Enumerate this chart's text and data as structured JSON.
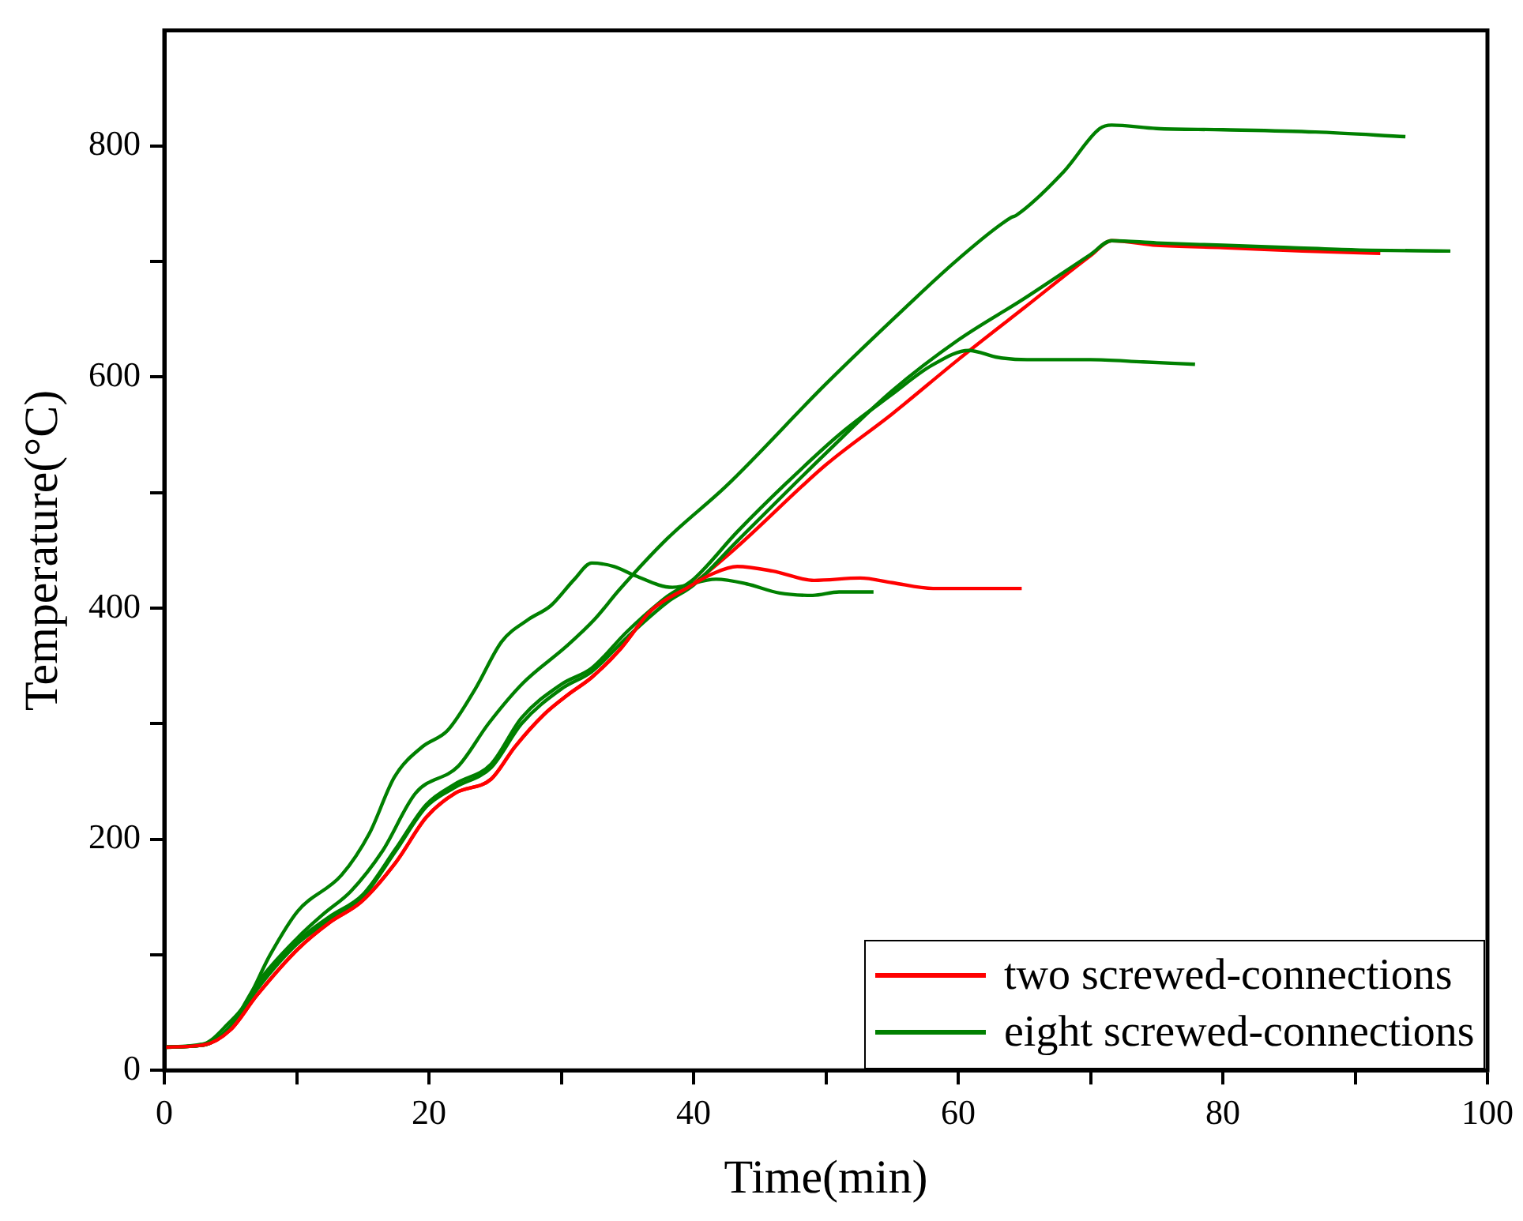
{
  "chart_data": {
    "type": "line",
    "xlabel": "Time(min)",
    "ylabel": "Temperature(°C)",
    "xlim": [
      0,
      100
    ],
    "ylim": [
      0,
      900
    ],
    "xticks": [
      0,
      {
        "value": 10,
        "label": null
      },
      20,
      {
        "value": 30,
        "label": null
      },
      40,
      {
        "value": 50,
        "label": null
      },
      60,
      {
        "value": 70,
        "label": null
      },
      80,
      {
        "value": 90,
        "label": null
      },
      100
    ],
    "yticks": [
      0,
      {
        "value": 100,
        "label": null
      },
      200,
      {
        "value": 300,
        "label": null
      },
      400,
      {
        "value": 500,
        "label": null
      },
      600,
      {
        "value": 700,
        "label": null
      },
      800
    ],
    "grid": false,
    "legend": "bottom right",
    "marker": "none",
    "line_style": "solid",
    "series": [
      {
        "name": "two screwed-connections",
        "color": "#ff0000",
        "x": [
          0,
          3,
          5,
          7,
          10.1,
          12.5,
          14.9,
          17.5,
          19.8,
          22,
          24.7,
          26.5,
          28.7,
          30.5,
          32.3,
          34.5,
          36.8,
          39.6,
          41.5,
          43.3,
          46,
          49.1,
          52.6,
          55,
          58.1,
          61,
          64.8
        ],
        "values": [
          20,
          22,
          35,
          65,
          105,
          128,
          146,
          180,
          219,
          240,
          252,
          280,
          308,
          325,
          340,
          365,
          398,
          418,
          430,
          436,
          432,
          424,
          426,
          422,
          417,
          417,
          417
        ]
      },
      {
        "name": "eight screwed-connections",
        "color": "#008000",
        "x": [
          0,
          3,
          4.8,
          6.1,
          8,
          10.1,
          13.4,
          15.5,
          17.4,
          19.5,
          21.4,
          23.5,
          25.5,
          27.5,
          29.2,
          31,
          32.3,
          34,
          35.6,
          38.4,
          41.7,
          44,
          46.5,
          49,
          51,
          53.6
        ],
        "values": [
          20,
          23,
          40,
          57,
          100,
          138,
          169,
          205,
          254,
          280,
          294,
          330,
          371,
          390,
          402,
          425,
          439,
          436,
          428,
          418,
          425,
          421,
          413,
          411,
          414,
          414
        ]
      },
      {
        "color": "#008000",
        "x": [
          0,
          3,
          5,
          7,
          10.1,
          12,
          14.1,
          16.5,
          19,
          22.2,
          24.5,
          27.1,
          30.4,
          32.5,
          34.4,
          38,
          42.5,
          50,
          56,
          60,
          64,
          64.4,
          68,
          70.7,
          71.6,
          75,
          80,
          87,
          93.8
        ],
        "values": [
          20,
          22,
          38,
          75,
          115,
          135,
          155,
          190,
          240,
          263,
          300,
          335,
          367,
          390,
          416,
          460,
          506,
          594,
          660,
          702,
          738,
          740,
          778,
          815,
          818,
          815,
          814,
          812,
          808
        ]
      },
      {
        "color": "#008000",
        "x": [
          0,
          3,
          5,
          7,
          10.1,
          12.5,
          15,
          17.5,
          19.8,
          22,
          24.7,
          27,
          30,
          32.3,
          35,
          38,
          40,
          43.3,
          50,
          55,
          60,
          65,
          70,
          71.6,
          75,
          80,
          85,
          90,
          97.2
        ],
        "values": [
          20,
          22,
          37,
          70,
          110,
          130,
          150,
          190,
          228,
          245,
          262,
          300,
          330,
          345,
          375,
          405,
          420,
          458,
          534,
          588,
          632,
          668,
          706,
          718,
          716,
          714,
          712,
          710,
          709
        ]
      },
      {
        "color": "#008000",
        "x": [
          0,
          3,
          5,
          7,
          10.1,
          12.5,
          15,
          17.5,
          19.8,
          22,
          24.7,
          27,
          30,
          32.3,
          35,
          38,
          40,
          43.3,
          47,
          51,
          55,
          58,
          60.8,
          63,
          65.2,
          70,
          74,
          77.9
        ],
        "values": [
          20,
          22,
          38,
          72,
          112,
          133,
          152,
          192,
          230,
          248,
          265,
          305,
          334,
          348,
          380,
          410,
          425,
          466,
          508,
          550,
          585,
          610,
          623,
          617,
          615,
          615,
          613,
          611
        ]
      },
      {
        "color": "#ff0000",
        "x": [
          0,
          3,
          5,
          7,
          10.1,
          12.5,
          14.9,
          17.5,
          19.8,
          22,
          24.7,
          26.5,
          28.7,
          30.5,
          32.3,
          34.5,
          36.8,
          39.6,
          43,
          50,
          55,
          60,
          65,
          70,
          71.6,
          75,
          80,
          86,
          91.9
        ],
        "values": [
          20,
          22,
          35,
          65,
          105,
          128,
          146,
          180,
          219,
          240,
          252,
          280,
          308,
          325,
          340,
          365,
          398,
          418,
          450,
          524,
          568,
          615,
          660,
          705,
          718,
          714,
          712,
          709,
          707
        ]
      }
    ]
  }
}
